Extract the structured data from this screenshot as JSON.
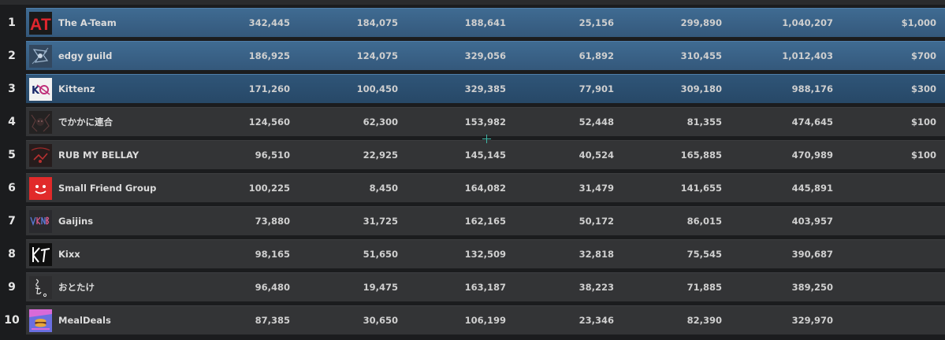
{
  "colors": {
    "top_row": "#3f6b92",
    "row": "#333436",
    "background": "#1b1c1e"
  },
  "rows": [
    {
      "rank": "1",
      "name": "The A-Team",
      "emblem": "at-logo-icon",
      "v1": "342,445",
      "v2": "184,075",
      "v3": "188,641",
      "v4": "25,156",
      "v5": "299,890",
      "total": "1,040,207",
      "prize": "$1,000"
    },
    {
      "rank": "2",
      "name": "edgy guild",
      "emblem": "edgy-guild-emblem-icon",
      "v1": "186,925",
      "v2": "124,075",
      "v3": "329,056",
      "v4": "61,892",
      "v5": "310,455",
      "total": "1,012,403",
      "prize": "$700"
    },
    {
      "rank": "3",
      "name": "Kittenz",
      "emblem": "kittenz-emblem-icon",
      "v1": "171,260",
      "v2": "100,450",
      "v3": "329,385",
      "v4": "77,901",
      "v5": "309,180",
      "total": "988,176",
      "prize": "$300"
    },
    {
      "rank": "4",
      "name": "でかかに連合",
      "emblem": "dekakani-emblem-icon",
      "v1": "124,560",
      "v2": "62,300",
      "v3": "153,982",
      "v4": "52,448",
      "v5": "81,355",
      "total": "474,645",
      "prize": "$100"
    },
    {
      "rank": "5",
      "name": "RUB MY BELLAY",
      "emblem": "rub-my-bellay-emblem-icon",
      "v1": "96,510",
      "v2": "22,925",
      "v3": "145,145",
      "v4": "40,524",
      "v5": "165,885",
      "total": "470,989",
      "prize": "$100"
    },
    {
      "rank": "6",
      "name": "Small Friend Group",
      "emblem": "smiley-face-icon",
      "v1": "100,225",
      "v2": "8,450",
      "v3": "164,082",
      "v4": "31,479",
      "v5": "141,655",
      "total": "445,891",
      "prize": ""
    },
    {
      "rank": "7",
      "name": "Gaijins",
      "emblem": "gaijins-emblem-icon",
      "v1": "73,880",
      "v2": "31,725",
      "v3": "162,165",
      "v4": "50,172",
      "v5": "86,015",
      "total": "403,957",
      "prize": ""
    },
    {
      "rank": "8",
      "name": "Kixx",
      "emblem": "kixx-emblem-icon",
      "v1": "98,165",
      "v2": "51,650",
      "v3": "132,509",
      "v4": "32,818",
      "v5": "75,545",
      "total": "390,687",
      "prize": ""
    },
    {
      "rank": "9",
      "name": "おとたけ",
      "emblem": "ototake-emblem-icon",
      "v1": "96,480",
      "v2": "19,475",
      "v3": "163,187",
      "v4": "38,223",
      "v5": "71,885",
      "total": "389,250",
      "prize": ""
    },
    {
      "rank": "10",
      "name": "MealDeals",
      "emblem": "mealdeals-emblem-icon",
      "v1": "87,385",
      "v2": "30,650",
      "v3": "106,199",
      "v4": "23,346",
      "v5": "82,390",
      "total": "329,970",
      "prize": ""
    }
  ]
}
